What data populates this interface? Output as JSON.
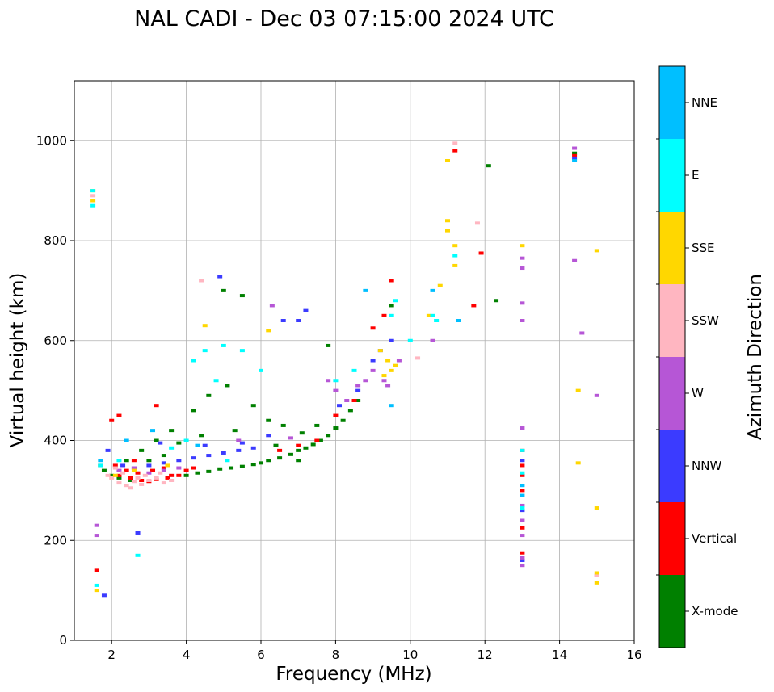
{
  "chart_data": {
    "type": "scatter",
    "title": "NAL CADI - Dec 03 07:15:00 2024 UTC",
    "xlabel": "Frequency (MHz)",
    "ylabel": "Virtual height (km)",
    "xlim": [
      1,
      16
    ],
    "ylim": [
      0,
      1120
    ],
    "xticks": [
      2,
      4,
      6,
      8,
      10,
      12,
      14,
      16
    ],
    "yticks": [
      0,
      200,
      400,
      600,
      800,
      1000
    ],
    "grid": true,
    "colorbar": {
      "label": "Azimuth Direction",
      "categories": [
        {
          "name": "X-mode",
          "color": "#008000"
        },
        {
          "name": "Vertical",
          "color": "#ff0000"
        },
        {
          "name": "NNW",
          "color": "#3b3bff"
        },
        {
          "name": "W",
          "color": "#b656d6"
        },
        {
          "name": "SSW",
          "color": "#ffb6c1"
        },
        {
          "name": "SSE",
          "color": "#ffd700"
        },
        {
          "name": "E",
          "color": "#00ffff"
        },
        {
          "name": "NNE",
          "color": "#00bfff"
        }
      ]
    },
    "series": [
      {
        "name": "X-mode",
        "color": "#008000",
        "points": [
          [
            4.0,
            330
          ],
          [
            4.3,
            335
          ],
          [
            4.6,
            338
          ],
          [
            4.9,
            343
          ],
          [
            5.2,
            345
          ],
          [
            5.5,
            348
          ],
          [
            5.8,
            352
          ],
          [
            6.0,
            355
          ],
          [
            6.2,
            360
          ],
          [
            6.5,
            365
          ],
          [
            6.8,
            372
          ],
          [
            7.0,
            380
          ],
          [
            7.2,
            385
          ],
          [
            7.4,
            392
          ],
          [
            7.6,
            400
          ],
          [
            7.8,
            410
          ],
          [
            8.0,
            425
          ],
          [
            8.2,
            440
          ],
          [
            8.4,
            460
          ],
          [
            8.6,
            480
          ],
          [
            5.0,
            700
          ],
          [
            5.5,
            690
          ],
          [
            7.8,
            590
          ],
          [
            9.5,
            670
          ],
          [
            12.1,
            950
          ],
          [
            12.3,
            680
          ],
          [
            2.4,
            360
          ],
          [
            2.8,
            380
          ],
          [
            3.2,
            400
          ],
          [
            3.6,
            420
          ],
          [
            4.2,
            460
          ],
          [
            4.6,
            490
          ],
          [
            5.1,
            510
          ],
          [
            5.8,
            470
          ],
          [
            6.2,
            440
          ],
          [
            6.6,
            430
          ],
          [
            7.1,
            415
          ],
          [
            7.5,
            430
          ],
          [
            1.7,
            350
          ],
          [
            1.8,
            340
          ],
          [
            2.0,
            330
          ],
          [
            2.2,
            325
          ],
          [
            2.5,
            320
          ],
          [
            3.0,
            360
          ],
          [
            3.4,
            370
          ],
          [
            3.8,
            395
          ],
          [
            4.4,
            410
          ],
          [
            5.3,
            420
          ],
          [
            6.4,
            390
          ],
          [
            7.0,
            360
          ],
          [
            14.4,
            975
          ]
        ]
      },
      {
        "name": "Vertical",
        "color": "#ff0000",
        "points": [
          [
            2.2,
            330
          ],
          [
            2.5,
            325
          ],
          [
            2.8,
            320
          ],
          [
            3.0,
            318
          ],
          [
            3.2,
            322
          ],
          [
            3.5,
            325
          ],
          [
            3.8,
            330
          ],
          [
            4.0,
            340
          ],
          [
            2.4,
            340
          ],
          [
            2.7,
            335
          ],
          [
            3.1,
            340
          ],
          [
            3.4,
            345
          ],
          [
            6.5,
            380
          ],
          [
            7.0,
            390
          ],
          [
            7.5,
            400
          ],
          [
            8.0,
            450
          ],
          [
            8.5,
            480
          ],
          [
            9.0,
            625
          ],
          [
            9.3,
            650
          ],
          [
            9.5,
            720
          ],
          [
            11.2,
            980
          ],
          [
            11.7,
            670
          ],
          [
            11.9,
            775
          ],
          [
            13.0,
            300
          ],
          [
            13.0,
            330
          ],
          [
            13.0,
            350
          ],
          [
            13.0,
            380
          ],
          [
            13.0,
            175
          ],
          [
            13.0,
            225
          ],
          [
            14.4,
            970
          ],
          [
            2.0,
            440
          ],
          [
            2.2,
            450
          ],
          [
            3.2,
            470
          ],
          [
            1.6,
            140
          ],
          [
            2.1,
            350
          ],
          [
            2.6,
            360
          ],
          [
            3.6,
            330
          ],
          [
            4.2,
            345
          ]
        ]
      },
      {
        "name": "NNW",
        "color": "#3b3bff",
        "points": [
          [
            2.6,
            345
          ],
          [
            3.0,
            350
          ],
          [
            3.4,
            355
          ],
          [
            3.8,
            360
          ],
          [
            4.2,
            365
          ],
          [
            4.6,
            370
          ],
          [
            5.0,
            375
          ],
          [
            5.4,
            380
          ],
          [
            5.8,
            385
          ],
          [
            6.6,
            640
          ],
          [
            7.2,
            660
          ],
          [
            7.0,
            640
          ],
          [
            8.1,
            470
          ],
          [
            8.6,
            500
          ],
          [
            9.0,
            560
          ],
          [
            9.2,
            580
          ],
          [
            9.5,
            600
          ],
          [
            13.0,
            160
          ],
          [
            13.0,
            260
          ],
          [
            13.0,
            360
          ],
          [
            14.4,
            965
          ],
          [
            2.7,
            215
          ],
          [
            1.8,
            90
          ],
          [
            4.9,
            728
          ],
          [
            1.9,
            380
          ],
          [
            2.3,
            350
          ],
          [
            3.3,
            395
          ],
          [
            4.5,
            390
          ],
          [
            5.5,
            395
          ],
          [
            6.2,
            410
          ]
        ]
      },
      {
        "name": "W",
        "color": "#b656d6",
        "points": [
          [
            2.2,
            340
          ],
          [
            2.6,
            345
          ],
          [
            3.0,
            335
          ],
          [
            3.4,
            340
          ],
          [
            3.8,
            345
          ],
          [
            7.8,
            520
          ],
          [
            8.0,
            500
          ],
          [
            8.3,
            480
          ],
          [
            8.6,
            510
          ],
          [
            8.8,
            520
          ],
          [
            9.0,
            540
          ],
          [
            9.3,
            520
          ],
          [
            9.4,
            510
          ],
          [
            9.7,
            560
          ],
          [
            10.6,
            600
          ],
          [
            13.0,
            150
          ],
          [
            13.0,
            165
          ],
          [
            13.0,
            210
          ],
          [
            13.0,
            240
          ],
          [
            13.0,
            270
          ],
          [
            13.0,
            640
          ],
          [
            13.0,
            675
          ],
          [
            13.0,
            745
          ],
          [
            13.0,
            765
          ],
          [
            13.0,
            425
          ],
          [
            14.4,
            760
          ],
          [
            14.4,
            985
          ],
          [
            14.6,
            615
          ],
          [
            15.0,
            490
          ],
          [
            15.0,
            130
          ],
          [
            1.6,
            230
          ],
          [
            1.6,
            210
          ],
          [
            6.3,
            670
          ],
          [
            5.4,
            400
          ],
          [
            6.8,
            405
          ]
        ]
      },
      {
        "name": "SSW",
        "color": "#ffb6c1",
        "points": [
          [
            1.9,
            330
          ],
          [
            2.0,
            325
          ],
          [
            2.2,
            315
          ],
          [
            2.4,
            310
          ],
          [
            2.5,
            305
          ],
          [
            2.6,
            318
          ],
          [
            2.8,
            312
          ],
          [
            3.0,
            320
          ],
          [
            3.2,
            325
          ],
          [
            3.4,
            315
          ],
          [
            3.6,
            320
          ],
          [
            2.1,
            345
          ],
          [
            2.3,
            335
          ],
          [
            2.7,
            325
          ],
          [
            11.2,
            995
          ],
          [
            11.8,
            835
          ],
          [
            10.2,
            565
          ],
          [
            2.9,
            330
          ],
          [
            3.3,
            335
          ],
          [
            4.4,
            720
          ],
          [
            1.5,
            890
          ],
          [
            15.0,
            130
          ]
        ]
      },
      {
        "name": "SSE",
        "color": "#ffd700",
        "points": [
          [
            9.3,
            530
          ],
          [
            9.5,
            540
          ],
          [
            9.6,
            550
          ],
          [
            9.4,
            560
          ],
          [
            9.2,
            580
          ],
          [
            11.0,
            820
          ],
          [
            11.0,
            840
          ],
          [
            11.2,
            790
          ],
          [
            11.2,
            750
          ],
          [
            11.0,
            960
          ],
          [
            13.0,
            790
          ],
          [
            14.5,
            500
          ],
          [
            14.5,
            355
          ],
          [
            15.0,
            780
          ],
          [
            15.0,
            265
          ],
          [
            15.0,
            115
          ],
          [
            15.0,
            135
          ],
          [
            10.8,
            710
          ],
          [
            10.5,
            650
          ],
          [
            6.2,
            620
          ],
          [
            4.5,
            630
          ],
          [
            1.6,
            100
          ],
          [
            1.5,
            880
          ],
          [
            1.5,
            900
          ],
          [
            2.1,
            330
          ],
          [
            2.6,
            340
          ],
          [
            3.5,
            350
          ]
        ]
      },
      {
        "name": "E",
        "color": "#00ffff",
        "points": [
          [
            4.2,
            560
          ],
          [
            4.5,
            580
          ],
          [
            5.0,
            590
          ],
          [
            5.5,
            580
          ],
          [
            4.8,
            520
          ],
          [
            6.0,
            540
          ],
          [
            8.0,
            520
          ],
          [
            8.5,
            540
          ],
          [
            9.5,
            650
          ],
          [
            9.6,
            680
          ],
          [
            10.0,
            600
          ],
          [
            10.6,
            650
          ],
          [
            10.7,
            640
          ],
          [
            11.2,
            770
          ],
          [
            13.0,
            380
          ],
          [
            13.0,
            335
          ],
          [
            13.0,
            265
          ],
          [
            1.6,
            110
          ],
          [
            1.5,
            870
          ],
          [
            1.5,
            900
          ],
          [
            2.7,
            170
          ],
          [
            1.7,
            350
          ],
          [
            2.2,
            360
          ],
          [
            3.6,
            385
          ],
          [
            4.0,
            400
          ],
          [
            5.1,
            360
          ]
        ]
      },
      {
        "name": "NNE",
        "color": "#00bfff",
        "points": [
          [
            8.8,
            700
          ],
          [
            10.6,
            700
          ],
          [
            11.3,
            640
          ],
          [
            14.4,
            960
          ],
          [
            13.0,
            310
          ],
          [
            13.0,
            290
          ],
          [
            9.5,
            470
          ],
          [
            1.7,
            360
          ],
          [
            2.4,
            400
          ],
          [
            3.1,
            420
          ],
          [
            4.3,
            390
          ]
        ]
      }
    ]
  }
}
